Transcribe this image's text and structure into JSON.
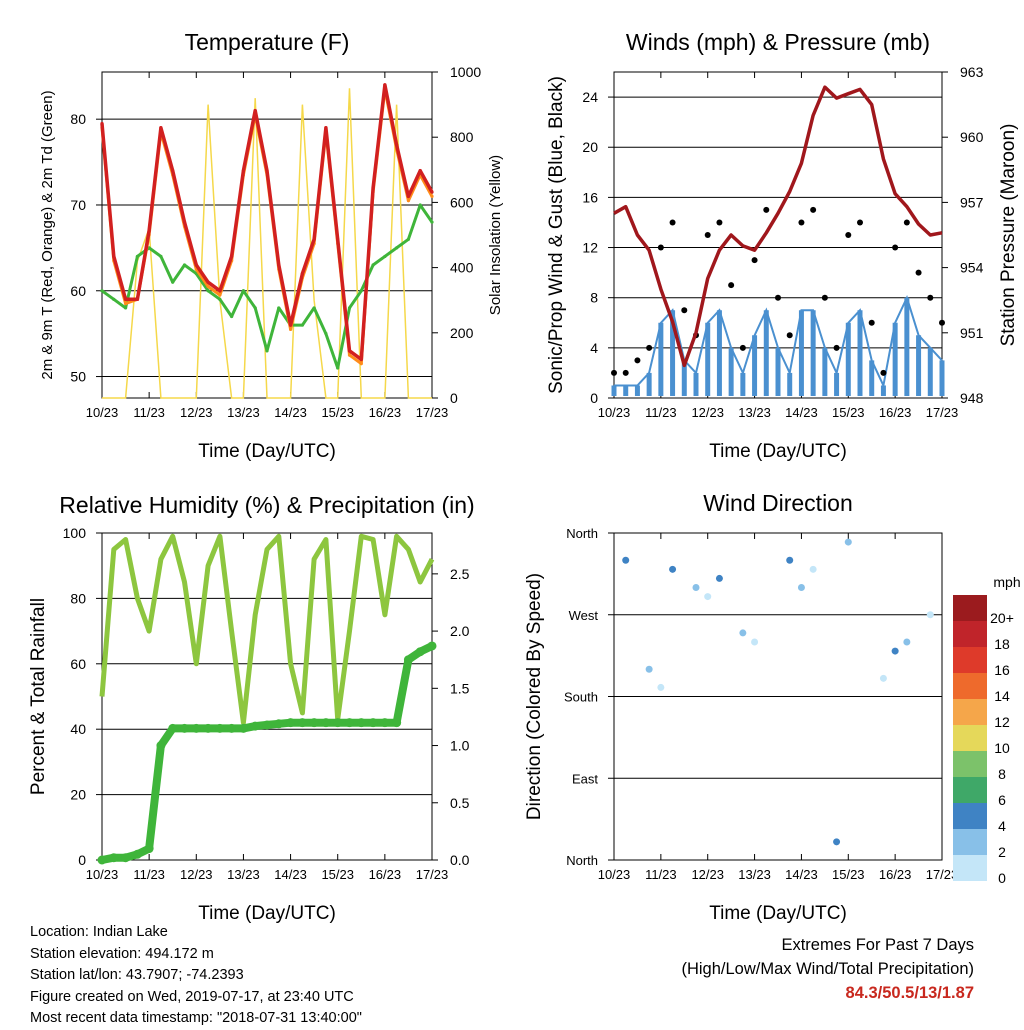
{
  "x_ticks": [
    "10/23",
    "11/23",
    "12/23",
    "13/23",
    "14/23",
    "15/23",
    "16/23",
    "17/23"
  ],
  "x_label": "Time (Day/UTC)",
  "chart_data": [
    {
      "type": "line",
      "title": "Temperature (F)",
      "xlabel": "Time (Day/UTC)",
      "ylabel": "2m & 9m T (Red, Orange) & 2m Td (Green)",
      "ylabel_right": "Solar Insolation (Yellow)",
      "ylim": [
        47.5,
        85.5
      ],
      "yticks": [
        50,
        60,
        70,
        80
      ],
      "ylim_right": [
        0,
        1000
      ],
      "yticks_right": [
        0,
        200,
        400,
        600,
        800,
        1000
      ],
      "x": [
        10.0,
        10.25,
        10.5,
        10.75,
        11.0,
        11.25,
        11.5,
        11.75,
        12.0,
        12.25,
        12.5,
        12.75,
        13.0,
        13.25,
        13.5,
        13.75,
        14.0,
        14.25,
        14.5,
        14.75,
        15.0,
        15.25,
        15.5,
        15.75,
        16.0,
        16.25,
        16.5,
        16.75,
        17.0
      ],
      "series": [
        {
          "color": "#d22020",
          "values": [
            79.5,
            64,
            59,
            59,
            67,
            79,
            74,
            68,
            63,
            61,
            60,
            64,
            74,
            81,
            74,
            63,
            56,
            62,
            66,
            79,
            66,
            53,
            52,
            72,
            84,
            77,
            71,
            74,
            71.5
          ]
        },
        {
          "color": "#ff8c1a",
          "values": [
            79,
            63.5,
            58.5,
            59,
            66.5,
            78.5,
            73.5,
            67.5,
            62.5,
            60.5,
            59.5,
            63.5,
            73.5,
            80.5,
            73.5,
            62.5,
            55.5,
            61.5,
            65.5,
            78.5,
            65.5,
            52.5,
            51.5,
            71.5,
            83.5,
            76.5,
            70.5,
            73.5,
            71
          ]
        },
        {
          "color": "#3fb53a",
          "values": [
            60,
            59,
            58,
            64,
            65,
            64,
            61,
            63,
            62,
            60,
            59,
            57,
            60,
            58,
            53,
            58,
            56,
            56,
            58,
            55,
            51,
            58,
            60,
            63,
            64,
            65,
            66,
            70,
            68
          ]
        },
        {
          "color": "#f5d84a",
          "values": [
            0,
            0,
            0,
            420,
            520,
            0,
            0,
            0,
            0,
            900,
            300,
            0,
            0,
            920,
            0,
            0,
            0,
            900,
            300,
            0,
            0,
            950,
            0,
            0,
            0,
            900,
            0,
            0,
            0
          ]
        }
      ]
    },
    {
      "type": "scatter",
      "title": "Winds (mph) & Pressure (mb)",
      "xlabel": "Time (Day/UTC)",
      "ylabel": "Sonic/Prop Wind & Gust (Blue, Black)",
      "ylabel_right": "Station Pressure (Maroon)",
      "ylim": [
        0,
        26
      ],
      "yticks": [
        0,
        4,
        8,
        12,
        16,
        20,
        24
      ],
      "ylim_right": [
        948,
        963
      ],
      "yticks_right": [
        948,
        951,
        954,
        957,
        960,
        963
      ],
      "x": [
        10.0,
        10.25,
        10.5,
        10.75,
        11.0,
        11.25,
        11.5,
        11.75,
        12.0,
        12.25,
        12.5,
        12.75,
        13.0,
        13.25,
        13.5,
        13.75,
        14.0,
        14.25,
        14.5,
        14.75,
        15.0,
        15.25,
        15.5,
        15.75,
        16.0,
        16.25,
        16.5,
        16.75,
        17.0
      ],
      "series": [
        {
          "color": "#000000",
          "values": [
            2,
            2,
            3,
            4,
            12,
            14,
            7,
            5,
            13,
            14,
            9,
            4,
            11,
            15,
            8,
            5,
            14,
            15,
            8,
            4,
            13,
            14,
            6,
            2,
            12,
            14,
            10,
            8,
            6
          ]
        },
        {
          "color": "#4a90d0",
          "values": [
            1,
            1,
            1,
            2,
            6,
            7,
            3,
            2,
            6,
            7,
            4,
            2,
            5,
            7,
            4,
            2,
            7,
            7,
            4,
            2,
            6,
            7,
            3,
            1,
            6,
            8,
            5,
            4,
            3
          ]
        },
        {
          "color": "#a0171c",
          "values": [
            956.5,
            956.8,
            955.5,
            954.8,
            953,
            951.5,
            949.5,
            951,
            953.5,
            954.8,
            955.5,
            955,
            954.8,
            955.6,
            956.5,
            957.5,
            958.8,
            961,
            962.3,
            961.8,
            962,
            962.2,
            961.5,
            959,
            957.4,
            956.8,
            956,
            955.5,
            955.6
          ]
        }
      ]
    },
    {
      "type": "line",
      "title": "Relative Humidity (%) & Precipitation (in)",
      "xlabel": "Time (Day/UTC)",
      "ylabel": "Percent & Total Rainfall",
      "ylim": [
        0,
        100
      ],
      "yticks": [
        0,
        20,
        40,
        60,
        80,
        100
      ],
      "ylim_right": [
        0,
        2.857
      ],
      "yticks_right": [
        "0.0",
        "0.5",
        "1.0",
        "1.5",
        "2.0",
        "2.5"
      ],
      "x": [
        10.0,
        10.25,
        10.5,
        10.75,
        11.0,
        11.25,
        11.5,
        11.75,
        12.0,
        12.25,
        12.5,
        12.75,
        13.0,
        13.25,
        13.5,
        13.75,
        14.0,
        14.25,
        14.5,
        14.75,
        15.0,
        15.25,
        15.5,
        15.75,
        16.0,
        16.25,
        16.5,
        16.75,
        17.0
      ],
      "series": [
        {
          "color": "#8dc63f",
          "values": [
            50,
            95,
            98,
            80,
            70,
            92,
            99,
            85,
            60,
            90,
            99,
            70,
            42,
            75,
            95,
            99,
            60,
            45,
            92,
            98,
            43,
            70,
            99,
            98,
            75,
            99,
            95,
            85,
            92
          ]
        },
        {
          "color": "#3fb53a",
          "values": [
            0,
            0.02,
            0.02,
            0.05,
            0.1,
            1.0,
            1.15,
            1.15,
            1.15,
            1.15,
            1.15,
            1.15,
            1.15,
            1.17,
            1.18,
            1.19,
            1.2,
            1.2,
            1.2,
            1.2,
            1.2,
            1.2,
            1.2,
            1.2,
            1.2,
            1.2,
            1.75,
            1.82,
            1.87
          ]
        }
      ]
    },
    {
      "type": "scatter",
      "title": "Wind Direction",
      "xlabel": "Time (Day/UTC)",
      "ylabel": "Direction (Colored By Speed)",
      "yticks": [
        "North",
        "West",
        "South",
        "East",
        "North"
      ],
      "colorbar_title": "mph",
      "colorbar_levels": [
        "20+",
        "18",
        "16",
        "14",
        "12",
        "10",
        "8",
        "6",
        "4",
        "2",
        "0"
      ],
      "colorbar_colors": [
        "#9b1b1e",
        "#c0242a",
        "#de3a2a",
        "#ee6a2c",
        "#f5a64a",
        "#e5d85a",
        "#7cc26a",
        "#3fa868",
        "#3f83c4",
        "#88c0e8",
        "#c4e6f8"
      ],
      "x": [
        10.25,
        10.75,
        11.0,
        11.25,
        11.75,
        12.0,
        12.25,
        12.75,
        13.0,
        13.75,
        14.0,
        14.25,
        14.75,
        15.0,
        15.75,
        16.0,
        16.25,
        16.75
      ],
      "values": [
        330,
        210,
        190,
        320,
        300,
        290,
        310,
        250,
        240,
        330,
        300,
        320,
        20,
        350,
        200,
        230,
        240,
        270
      ]
    }
  ],
  "info": {
    "location": "Location: Indian Lake",
    "elevation": "Station elevation: 494.172 m",
    "latlon": "Station lat/lon: 43.7907; -74.2393",
    "created": "Figure created on Wed, 2019-07-17, at 23:40 UTC",
    "recent": "Most recent data timestamp: \"2018-07-31 13:40:00\""
  },
  "extremes": {
    "title": "Extremes For Past 7 Days",
    "subtitle": "(High/Low/Max Wind/Total Precipitation)",
    "values": "84.3/50.5/13/1.87"
  }
}
